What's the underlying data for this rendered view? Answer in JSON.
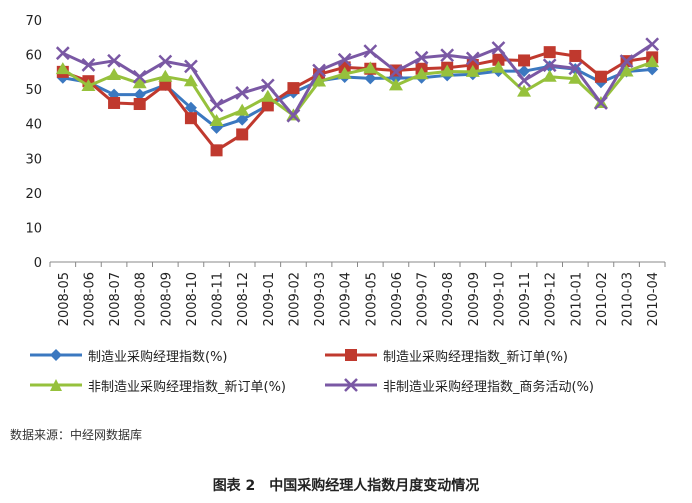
{
  "chart_data": {
    "type": "line",
    "categories": [
      "2008-05",
      "2008-06",
      "2008-07",
      "2008-08",
      "2008-09",
      "2008-10",
      "2008-11",
      "2008-12",
      "2009-01",
      "2009-02",
      "2009-03",
      "2009-04",
      "2009-05",
      "2009-06",
      "2009-07",
      "2009-08",
      "2009-09",
      "2009-10",
      "2009-11",
      "2009-12",
      "2010-01",
      "2010-02",
      "2010-03",
      "2010-04"
    ],
    "ylim": [
      0,
      70
    ],
    "yticks": [
      "0",
      "10",
      "20",
      "30",
      "40",
      "50",
      "60",
      "70"
    ],
    "grid": false,
    "legend_position": "bottom",
    "series": [
      {
        "name": "制造业采购经理指数(%)",
        "color": "#3B78C0",
        "marker": "diamond",
        "values": [
          53.3,
          52.0,
          48.4,
          48.4,
          51.2,
          44.6,
          38.8,
          41.2,
          45.3,
          49.0,
          52.4,
          53.5,
          53.1,
          53.2,
          53.3,
          54.0,
          54.3,
          55.2,
          55.2,
          56.6,
          55.8,
          52.0,
          55.1,
          55.7
        ]
      },
      {
        "name": "制造业采购经理指数_新订单(%)",
        "color": "#C0392E",
        "marker": "square",
        "values": [
          55.0,
          52.3,
          46.0,
          45.7,
          51.3,
          41.6,
          32.3,
          36.9,
          45.3,
          50.3,
          54.3,
          56.3,
          55.9,
          55.4,
          55.9,
          56.2,
          57.0,
          58.5,
          58.3,
          60.7,
          59.6,
          53.6,
          58.1,
          59.2
        ]
      },
      {
        "name": "非制造业采购经理指数_新订单(%)",
        "color": "#96C13C",
        "marker": "triangle",
        "values": [
          55.8,
          50.9,
          54.1,
          51.7,
          53.6,
          52.3,
          40.8,
          43.8,
          47.8,
          42.4,
          52.2,
          54.4,
          56.0,
          51.1,
          54.3,
          55.1,
          55.0,
          56.2,
          49.3,
          53.6,
          53.0,
          46.0,
          55.1,
          57.8
        ]
      },
      {
        "name": "非制造业采购经理指数_商务活动(%)",
        "color": "#7A58A4",
        "marker": "x",
        "values": [
          60.4,
          57.0,
          58.2,
          53.6,
          58.0,
          56.6,
          45.3,
          48.9,
          51.1,
          42.3,
          55.4,
          58.5,
          61.0,
          55.1,
          59.1,
          59.8,
          58.9,
          61.9,
          52.5,
          56.9,
          56.0,
          46.0,
          58.1,
          63.0
        ]
      }
    ]
  },
  "source_text": "数据来源：中经网数据库",
  "caption": "图表 2　中国采购经理人指数月度变动情况"
}
